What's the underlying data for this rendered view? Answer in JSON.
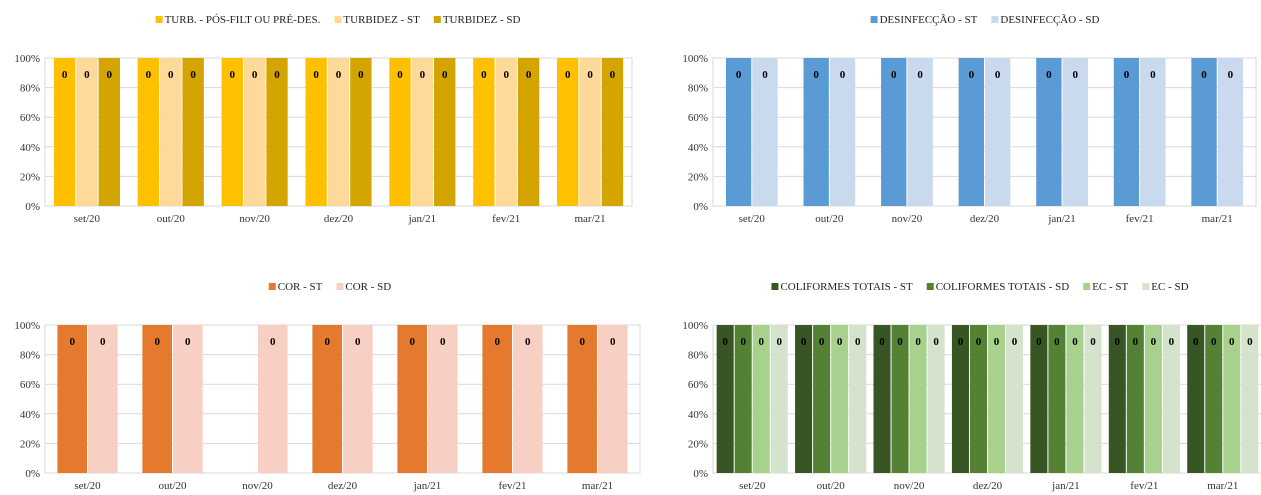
{
  "chart_data": [
    {
      "type": "bar",
      "categories": [
        "set/20",
        "out/20",
        "nov/20",
        "dez/20",
        "jan/21",
        "fev/21",
        "mar/21"
      ],
      "yticks": [
        "0%",
        "20%",
        "40%",
        "60%",
        "80%",
        "100%"
      ],
      "ylim": [
        0,
        100
      ],
      "grid": true,
      "legend_position": "top",
      "series": [
        {
          "name": "TURB. - PÓS-FILT OU PRÉ-DES.",
          "color": "#FFC000",
          "values": [
            100,
            100,
            100,
            100,
            100,
            100,
            100
          ],
          "labels": [
            "0",
            "0",
            "0",
            "0",
            "0",
            "0",
            "0"
          ]
        },
        {
          "name": "TURBIDEZ - ST",
          "color": "#FFD999",
          "values": [
            100,
            100,
            100,
            100,
            100,
            100,
            100
          ],
          "labels": [
            "0",
            "0",
            "0",
            "0",
            "0",
            "0",
            "0"
          ]
        },
        {
          "name": "TURBIDEZ - SD",
          "color": "#D4A500",
          "values": [
            100,
            100,
            100,
            100,
            100,
            100,
            100
          ],
          "labels": [
            "0",
            "0",
            "0",
            "0",
            "0",
            "0",
            "0"
          ]
        }
      ]
    },
    {
      "type": "bar",
      "categories": [
        "set/20",
        "out/20",
        "nov/20",
        "dez/20",
        "jan/21",
        "fev/21",
        "mar/21"
      ],
      "yticks": [
        "0%",
        "20%",
        "40%",
        "60%",
        "80%",
        "100%"
      ],
      "ylim": [
        0,
        100
      ],
      "grid": true,
      "legend_position": "top",
      "series": [
        {
          "name": "DESINFECÇÃO - ST",
          "color": "#5B9BD5",
          "values": [
            100,
            100,
            100,
            100,
            100,
            100,
            100
          ],
          "labels": [
            "0",
            "0",
            "0",
            "0",
            "0",
            "0",
            "0"
          ]
        },
        {
          "name": "DESINFECÇÃO - SD",
          "color": "#C9D9EE",
          "values": [
            100,
            100,
            100,
            100,
            100,
            100,
            100
          ],
          "labels": [
            "0",
            "0",
            "0",
            "0",
            "0",
            "0",
            "0"
          ]
        }
      ]
    },
    {
      "type": "bar",
      "categories": [
        "set/20",
        "out/20",
        "nov/20",
        "dez/20",
        "jan/21",
        "fev/21",
        "mar/21"
      ],
      "yticks": [
        "0%",
        "20%",
        "40%",
        "60%",
        "80%",
        "100%"
      ],
      "ylim": [
        0,
        100
      ],
      "grid": true,
      "legend_position": "top",
      "series": [
        {
          "name": "COR - ST",
          "color": "#E57A2E",
          "values": [
            100,
            100,
            0,
            100,
            100,
            100,
            100
          ],
          "labels": [
            "0",
            "0",
            "",
            "0",
            "0",
            "0",
            "0"
          ]
        },
        {
          "name": "COR - SD",
          "color": "#F8CFC3",
          "values": [
            100,
            100,
            100,
            100,
            100,
            100,
            100
          ],
          "labels": [
            "0",
            "0",
            "0",
            "0",
            "0",
            "0",
            "0"
          ]
        }
      ]
    },
    {
      "type": "bar",
      "categories": [
        "set/20",
        "out/20",
        "nov/20",
        "dez/20",
        "jan/21",
        "fev/21",
        "mar/21"
      ],
      "yticks": [
        "0%",
        "20%",
        "40%",
        "60%",
        "80%",
        "100%"
      ],
      "ylim": [
        0,
        100
      ],
      "grid": true,
      "legend_position": "top",
      "series": [
        {
          "name": "COLIFORMES TOTAIS - ST",
          "color": "#375623",
          "values": [
            100,
            100,
            100,
            100,
            100,
            100,
            100
          ],
          "labels": [
            "0",
            "0",
            "0",
            "0",
            "0",
            "0",
            "0"
          ]
        },
        {
          "name": "COLIFORMES TOTAIS - SD",
          "color": "#548235",
          "values": [
            100,
            100,
            100,
            100,
            100,
            100,
            100
          ],
          "labels": [
            "0",
            "0",
            "0",
            "0",
            "0",
            "0",
            "0"
          ]
        },
        {
          "name": "EC - ST",
          "color": "#A9D18E",
          "values": [
            100,
            100,
            100,
            100,
            100,
            100,
            100
          ],
          "labels": [
            "0",
            "0",
            "0",
            "0",
            "0",
            "0",
            "0"
          ]
        },
        {
          "name": "EC - SD",
          "color": "#D5E2CC",
          "values": [
            100,
            100,
            100,
            100,
            100,
            100,
            100
          ],
          "labels": [
            "0",
            "0",
            "0",
            "0",
            "0",
            "0",
            "0"
          ]
        }
      ]
    }
  ]
}
